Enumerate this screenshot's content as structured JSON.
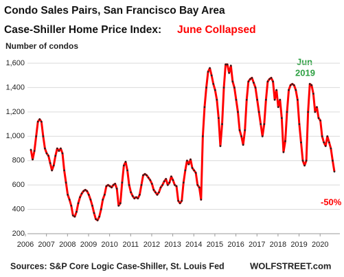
{
  "chart_data": {
    "type": "line",
    "title": "Condo Sales Pairs, San Francisco Bay Area",
    "subtitle": "Case-Shiller Home Price Index:",
    "subtitle_highlight": "June Collapsed",
    "y_label": "Number of condos",
    "annotations": [
      "Jun",
      "2019",
      "-50%"
    ],
    "source": "Sources: S&P Core Logic Case-Shiller, St. Louis Fed",
    "brand": "WOLFSTREET.com",
    "grid": true,
    "ylim": [
      200,
      1600
    ],
    "yticks": [
      200,
      400,
      600,
      800,
      {
        "value": 1000,
        "label": "1,000"
      },
      {
        "value": 1200,
        "label": "1,200"
      },
      {
        "value": 1400,
        "label": "1,400"
      },
      {
        "value": 1600,
        "label": "1,600"
      }
    ],
    "categories": [
      "2006",
      null,
      null,
      null,
      null,
      null,
      null,
      null,
      null,
      null,
      null,
      null,
      "2007",
      null,
      null,
      null,
      null,
      null,
      null,
      null,
      null,
      null,
      null,
      null,
      "2008",
      null,
      null,
      null,
      null,
      null,
      null,
      null,
      null,
      null,
      null,
      null,
      "2009",
      null,
      null,
      null,
      null,
      null,
      null,
      null,
      null,
      null,
      null,
      null,
      "2010",
      null,
      null,
      null,
      null,
      null,
      null,
      null,
      null,
      null,
      null,
      null,
      "2011",
      null,
      null,
      null,
      null,
      null,
      null,
      null,
      null,
      null,
      null,
      null,
      "2012",
      null,
      null,
      null,
      null,
      null,
      null,
      null,
      null,
      null,
      null,
      null,
      "2013",
      null,
      null,
      null,
      null,
      null,
      null,
      null,
      null,
      null,
      null,
      null,
      "2014",
      null,
      null,
      null,
      null,
      null,
      null,
      null,
      null,
      null,
      null,
      null,
      "2015",
      null,
      null,
      null,
      null,
      null,
      null,
      null,
      null,
      null,
      null,
      null,
      "2016",
      null,
      null,
      null,
      null,
      null,
      null,
      null,
      null,
      null,
      null,
      null,
      "2017",
      null,
      null,
      null,
      null,
      null,
      null,
      null,
      null,
      null,
      null,
      null,
      "2018",
      null,
      null,
      null,
      null,
      null,
      null,
      null,
      null,
      null,
      null,
      null,
      "2019",
      null,
      null,
      null,
      null,
      null,
      null,
      null,
      null,
      null,
      null,
      null,
      "2020",
      null,
      null,
      null,
      null,
      null
    ],
    "series": [
      {
        "name": "Condo sales pairs",
        "color": "#ff0000",
        "marker_color": "#222222",
        "values": [
          890,
          810,
          880,
          1000,
          1120,
          1140,
          1120,
          1000,
          900,
          860,
          840,
          780,
          720,
          760,
          840,
          900,
          880,
          900,
          860,
          720,
          620,
          520,
          480,
          430,
          350,
          340,
          380,
          450,
          500,
          530,
          550,
          560,
          550,
          520,
          480,
          430,
          370,
          320,
          310,
          340,
          400,
          480,
          520,
          590,
          600,
          590,
          580,
          600,
          610,
          570,
          430,
          450,
          620,
          760,
          790,
          720,
          600,
          540,
          510,
          490,
          500,
          490,
          520,
          600,
          680,
          690,
          680,
          660,
          640,
          610,
          560,
          540,
          520,
          540,
          580,
          600,
          630,
          650,
          600,
          620,
          670,
          640,
          600,
          590,
          470,
          450,
          470,
          620,
          720,
          800,
          770,
          810,
          740,
          720,
          700,
          600,
          580,
          480,
          1000,
          1240,
          1400,
          1530,
          1560,
          1500,
          1430,
          1380,
          1300,
          1150,
          920,
          1100,
          1400,
          1590,
          1590,
          1520,
          1580,
          1450,
          1400,
          1300,
          1200,
          1050,
          1000,
          930,
          1050,
          1300,
          1450,
          1470,
          1480,
          1440,
          1400,
          1300,
          1200,
          1100,
          1000,
          1100,
          1300,
          1450,
          1470,
          1480,
          1450,
          1300,
          1380,
          1240,
          1300,
          1150,
          870,
          960,
          1200,
          1380,
          1420,
          1430,
          1420,
          1380,
          1300,
          1100,
          950,
          800,
          760,
          800,
          1200,
          1430,
          1420,
          1350,
          1200,
          1240,
          1150,
          1130,
          1000,
          950,
          920,
          1000,
          950,
          900,
          800,
          710
        ]
      }
    ]
  }
}
